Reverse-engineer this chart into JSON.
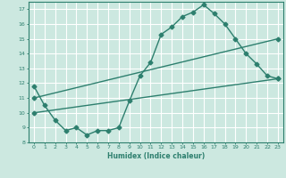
{
  "line1_x": [
    0,
    1,
    2,
    3,
    4,
    5,
    6,
    7,
    8,
    9,
    10,
    11,
    12,
    13,
    14,
    15,
    16,
    17,
    18,
    19,
    20,
    21,
    22,
    23
  ],
  "line1_y": [
    11.8,
    10.5,
    9.5,
    8.8,
    9.0,
    8.5,
    8.8,
    8.8,
    9.0,
    10.8,
    12.5,
    13.4,
    15.3,
    15.8,
    16.5,
    16.8,
    17.3,
    16.7,
    16.0,
    15.0,
    14.0,
    13.3,
    12.5,
    12.3
  ],
  "line2_x": [
    0,
    23
  ],
  "line2_y": [
    11.0,
    15.0
  ],
  "line3_x": [
    0,
    23
  ],
  "line3_y": [
    10.0,
    12.3
  ],
  "color": "#2d7f6e",
  "bg_color": "#cce8e0",
  "grid_color": "#ffffff",
  "xlabel": "Humidex (Indice chaleur)",
  "xlim": [
    -0.5,
    23.5
  ],
  "ylim": [
    8,
    17.5
  ],
  "yticks": [
    8,
    9,
    10,
    11,
    12,
    13,
    14,
    15,
    16,
    17
  ],
  "xticks": [
    0,
    1,
    2,
    3,
    4,
    5,
    6,
    7,
    8,
    9,
    10,
    11,
    12,
    13,
    14,
    15,
    16,
    17,
    18,
    19,
    20,
    21,
    22,
    23
  ],
  "marker": "D",
  "markersize": 2.5,
  "linewidth": 1.0
}
